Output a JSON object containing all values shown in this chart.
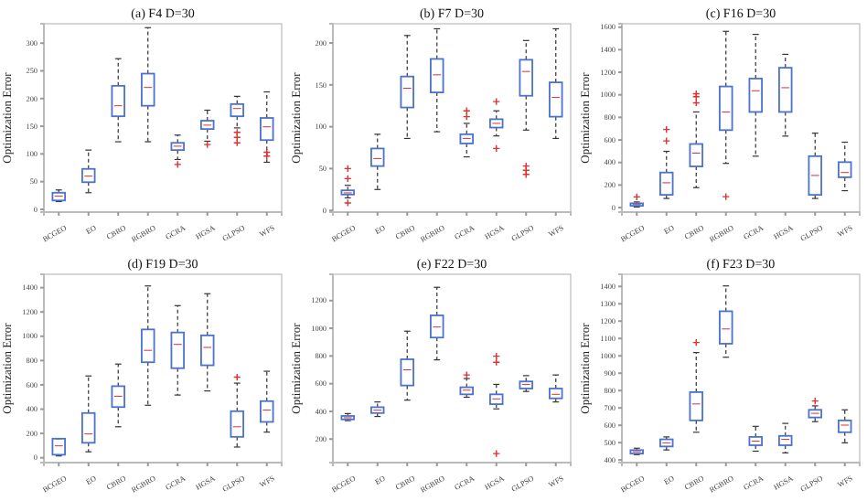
{
  "chart_data": [
    {
      "type": "box",
      "title": "(a)  F4 D=30",
      "ylabel": "Optimization Error",
      "categories": [
        "BCGEO",
        "EO",
        "CBRO",
        "RGBRO",
        "GCRA",
        "HGSA",
        "GLPSO",
        "WFS"
      ],
      "ylim": [
        -5,
        335
      ],
      "yticks": [
        0,
        50,
        100,
        150,
        200,
        250,
        300
      ],
      "series": [
        {
          "color": "#4a72d0",
          "boxes": [
            {
              "low": 14,
              "q1": 16,
              "median": 24,
              "q3": 30,
              "high": 35
            },
            {
              "low": 30,
              "q1": 49,
              "median": 60,
              "q3": 73,
              "high": 107
            },
            {
              "low": 122,
              "q1": 168,
              "median": 187,
              "q3": 223,
              "high": 272
            },
            {
              "low": 122,
              "q1": 187,
              "median": 220,
              "q3": 245,
              "high": 328
            },
            {
              "low": 90,
              "q1": 107,
              "median": 114,
              "q3": 120,
              "high": 134,
              "outliers": [
                81
              ]
            },
            {
              "low": 123,
              "q1": 145,
              "median": 152,
              "q3": 160,
              "high": 179,
              "outliers": [
                117
              ]
            },
            {
              "low": 147,
              "q1": 168,
              "median": 182,
              "q3": 190,
              "high": 204,
              "outliers": [
                139,
                130,
                120
              ]
            },
            {
              "low": 85,
              "q1": 125,
              "median": 149,
              "q3": 165,
              "high": 212,
              "outliers": [
                103,
                96
              ]
            }
          ]
        }
      ]
    },
    {
      "type": "box",
      "title": "(b)  F7 D=30",
      "ylabel": "Optimization Error",
      "categories": [
        "BCGEO",
        "EO",
        "CBRO",
        "RGBRO",
        "GCRA",
        "HGSA",
        "GLPSO",
        "WFS"
      ],
      "ylim": [
        -2,
        223
      ],
      "yticks": [
        0,
        50,
        100,
        150,
        200
      ],
      "series": [
        {
          "color": "#4a72d0",
          "boxes": [
            {
              "low": 15,
              "q1": 19,
              "median": 21,
              "q3": 24,
              "high": 30,
              "outliers": [
                50,
                38,
                9
              ]
            },
            {
              "low": 25,
              "q1": 53,
              "median": 62,
              "q3": 74,
              "high": 91
            },
            {
              "low": 86,
              "q1": 123,
              "median": 146,
              "q3": 160,
              "high": 209
            },
            {
              "low": 94,
              "q1": 141,
              "median": 162,
              "q3": 181,
              "high": 217
            },
            {
              "low": 64,
              "q1": 80,
              "median": 86,
              "q3": 91,
              "high": 104,
              "outliers": [
                119,
                112
              ]
            },
            {
              "low": 89,
              "q1": 99,
              "median": 104,
              "q3": 109,
              "high": 119,
              "outliers": [
                130,
                74
              ]
            },
            {
              "low": 96,
              "q1": 137,
              "median": 166,
              "q3": 180,
              "high": 203,
              "outliers": [
                53,
                48,
                43
              ]
            },
            {
              "low": 86,
              "q1": 112,
              "median": 135,
              "q3": 153,
              "high": 217
            }
          ]
        }
      ]
    },
    {
      "type": "box",
      "title": "(c)  F16 D=30",
      "ylabel": "Optimization Error",
      "categories": [
        "BCGEO",
        "EO",
        "CBRO",
        "RGBRO",
        "GCRA",
        "HGSA",
        "GLPSO",
        "WFS"
      ],
      "ylim": [
        -40,
        1630
      ],
      "yticks": [
        0,
        200,
        400,
        600,
        800,
        1000,
        1200,
        1400,
        1600
      ],
      "series": [
        {
          "color": "#4a72d0",
          "boxes": [
            {
              "low": 5,
              "q1": 16,
              "median": 27,
              "q3": 38,
              "high": 50,
              "outliers": [
                95
              ]
            },
            {
              "low": 81,
              "q1": 113,
              "median": 220,
              "q3": 311,
              "high": 499,
              "outliers": [
                591,
                693
              ]
            },
            {
              "low": 177,
              "q1": 365,
              "median": 483,
              "q3": 564,
              "high": 848,
              "outliers": [
                929,
                983,
                1010
              ]
            },
            {
              "low": 392,
              "q1": 687,
              "median": 848,
              "q3": 1074,
              "high": 1563,
              "outliers": [
                97
              ]
            },
            {
              "low": 456,
              "q1": 848,
              "median": 1036,
              "q3": 1144,
              "high": 1536
            },
            {
              "low": 634,
              "q1": 848,
              "median": 1063,
              "q3": 1240,
              "high": 1359
            },
            {
              "low": 81,
              "q1": 113,
              "median": 285,
              "q3": 456,
              "high": 660
            },
            {
              "low": 150,
              "q1": 269,
              "median": 311,
              "q3": 403,
              "high": 580
            }
          ]
        }
      ]
    },
    {
      "type": "box",
      "title": "(d)  F19 D=30",
      "ylabel": "Optimization Error",
      "categories": [
        "BCGEO",
        "EO",
        "CBRO",
        "RGBRO",
        "GCRA",
        "HGSA",
        "GLPSO",
        "WFS"
      ],
      "ylim": [
        -40,
        1510
      ],
      "yticks": [
        0,
        200,
        400,
        600,
        800,
        1000,
        1200,
        1400
      ],
      "series": [
        {
          "color": "#4a72d0",
          "boxes": [
            {
              "low": 15,
              "q1": 25,
              "median": 98,
              "q3": 157,
              "high": 157
            },
            {
              "low": 49,
              "q1": 123,
              "median": 196,
              "q3": 368,
              "high": 673
            },
            {
              "low": 255,
              "q1": 417,
              "median": 506,
              "q3": 589,
              "high": 771
            },
            {
              "low": 432,
              "q1": 786,
              "median": 884,
              "q3": 1056,
              "high": 1414
            },
            {
              "low": 516,
              "q1": 737,
              "median": 933,
              "q3": 1031,
              "high": 1252
            },
            {
              "low": 550,
              "q1": 761,
              "median": 908,
              "q3": 1007,
              "high": 1350
            },
            {
              "low": 88,
              "q1": 172,
              "median": 255,
              "q3": 383,
              "high": 614,
              "outliers": [
                663
              ]
            },
            {
              "low": 211,
              "q1": 295,
              "median": 393,
              "q3": 466,
              "high": 712
            }
          ]
        }
      ]
    },
    {
      "type": "box",
      "title": "(e)  F22 D=30",
      "ylabel": "Optimization Error",
      "categories": [
        "BCGEO",
        "EO",
        "CBRO",
        "RGBRO",
        "GCRA",
        "HGSA",
        "GLPSO",
        "WFS"
      ],
      "ylim": [
        30,
        1390
      ],
      "yticks": [
        200,
        400,
        600,
        800,
        1000,
        1200
      ],
      "series": [
        {
          "color": "#4a72d0",
          "boxes": [
            {
              "low": 333,
              "q1": 342,
              "median": 354,
              "q3": 367,
              "high": 384
            },
            {
              "low": 363,
              "q1": 388,
              "median": 409,
              "q3": 430,
              "high": 468
            },
            {
              "low": 481,
              "q1": 587,
              "median": 700,
              "q3": 776,
              "high": 979
            },
            {
              "low": 772,
              "q1": 933,
              "median": 1009,
              "q3": 1093,
              "high": 1296
            },
            {
              "low": 502,
              "q1": 523,
              "median": 553,
              "q3": 574,
              "high": 637,
              "outliers": [
                663
              ]
            },
            {
              "low": 418,
              "q1": 452,
              "median": 490,
              "q3": 523,
              "high": 595,
              "outliers": [
                798,
                755,
                95
              ]
            },
            {
              "low": 544,
              "q1": 565,
              "median": 595,
              "q3": 616,
              "high": 658
            },
            {
              "low": 468,
              "q1": 494,
              "median": 523,
              "q3": 565,
              "high": 663
            }
          ]
        }
      ]
    },
    {
      "type": "box",
      "title": "(f)  F23 D=30",
      "ylabel": "Optimization Error",
      "categories": [
        "BCGEO",
        "EO",
        "CBRO",
        "RGBRO",
        "GCRA",
        "HGSA",
        "GLPSO",
        "WFS"
      ],
      "ylim": [
        385,
        1470
      ],
      "yticks": [
        400,
        500,
        600,
        700,
        800,
        900,
        1000,
        1100,
        1200,
        1300,
        1400
      ],
      "series": [
        {
          "color": "#4a72d0",
          "boxes": [
            {
              "low": 431,
              "q1": 437,
              "median": 448,
              "q3": 457,
              "high": 468
            },
            {
              "low": 458,
              "q1": 478,
              "median": 499,
              "q3": 519,
              "high": 533
            },
            {
              "low": 560,
              "q1": 628,
              "median": 723,
              "q3": 791,
              "high": 1019,
              "outliers": [
                1077
              ]
            },
            {
              "low": 992,
              "q1": 1070,
              "median": 1155,
              "q3": 1257,
              "high": 1403
            },
            {
              "low": 451,
              "q1": 485,
              "median": 509,
              "q3": 533,
              "high": 594
            },
            {
              "low": 441,
              "q1": 485,
              "median": 519,
              "q3": 539,
              "high": 611
            },
            {
              "low": 621,
              "q1": 645,
              "median": 669,
              "q3": 689,
              "high": 712,
              "outliers": [
                740
              ]
            },
            {
              "low": 499,
              "q1": 560,
              "median": 601,
              "q3": 628,
              "high": 689
            }
          ]
        }
      ]
    }
  ]
}
